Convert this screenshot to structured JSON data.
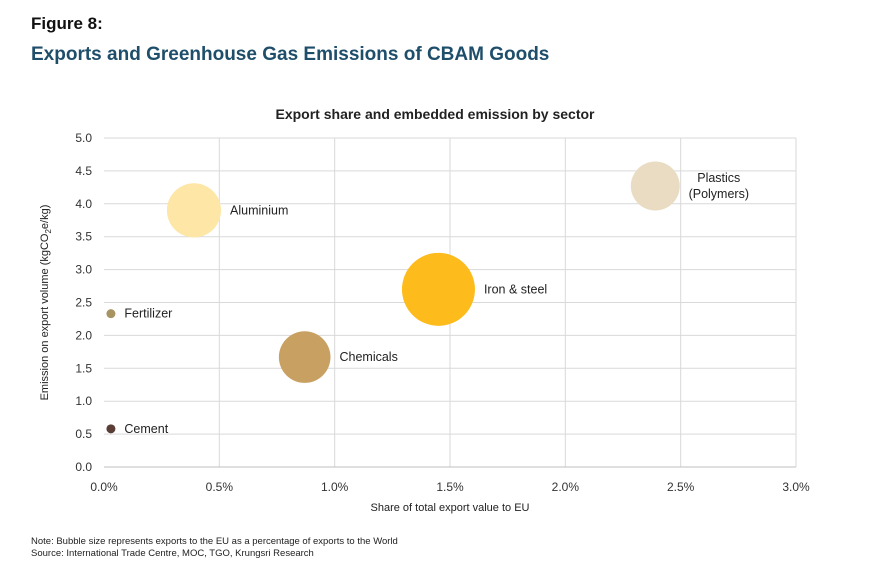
{
  "figure_label": "Figure 8:",
  "figure_title": "Exports and Greenhouse Gas Emissions of CBAM Goods",
  "notes": {
    "note": "Note: Bubble size represents exports to the EU as a percentage of exports to the World",
    "source": "Source: International Trade Centre, MOC, TGO, Krungsri Research"
  },
  "chart_data": {
    "type": "scatter",
    "title": "Export share and embedded emission by sector",
    "xlabel": "Share of total export value to EU",
    "ylabel_parts": [
      "Emission on export volume (kgCO",
      "2",
      "e/kg)"
    ],
    "xlim": [
      0,
      3.0
    ],
    "ylim": [
      0,
      5.0
    ],
    "x_ticks": [
      0,
      0.5,
      1.0,
      1.5,
      2.0,
      2.5,
      3.0
    ],
    "x_tick_labels": [
      "0.0%",
      "0.5%",
      "1.0%",
      "1.5%",
      "2.0%",
      "2.5%",
      "3.0%"
    ],
    "y_ticks": [
      0,
      0.5,
      1.0,
      1.5,
      2.0,
      2.5,
      3.0,
      3.5,
      4.0,
      4.5,
      5.0
    ],
    "y_tick_labels": [
      "0.0",
      "0.5",
      "1.0",
      "1.5",
      "2.0",
      "2.5",
      "3.0",
      "3.5",
      "4.0",
      "4.5",
      "5.0"
    ],
    "grid": true,
    "points": [
      {
        "label_lines": [
          "Aluminium"
        ],
        "x": 0.39,
        "y": 3.9,
        "size": 11,
        "color": "#fde6a6"
      },
      {
        "label_lines": [
          "Plastics",
          "(Polymers)"
        ],
        "x": 2.39,
        "y": 4.27,
        "size": 9,
        "color": "#e9dcc3"
      },
      {
        "label_lines": [
          "Iron & steel"
        ],
        "x": 1.45,
        "y": 2.7,
        "size": 20,
        "color": "#fdbb1c"
      },
      {
        "label_lines": [
          "Fertilizer"
        ],
        "x": 0.03,
        "y": 2.33,
        "size": 0.2,
        "color": "#a89463"
      },
      {
        "label_lines": [
          "Chemicals"
        ],
        "x": 0.87,
        "y": 1.67,
        "size": 10,
        "color": "#c8a062"
      },
      {
        "label_lines": [
          "Cement"
        ],
        "x": 0.03,
        "y": 0.58,
        "size": 0.2,
        "color": "#5a3e36"
      }
    ]
  }
}
